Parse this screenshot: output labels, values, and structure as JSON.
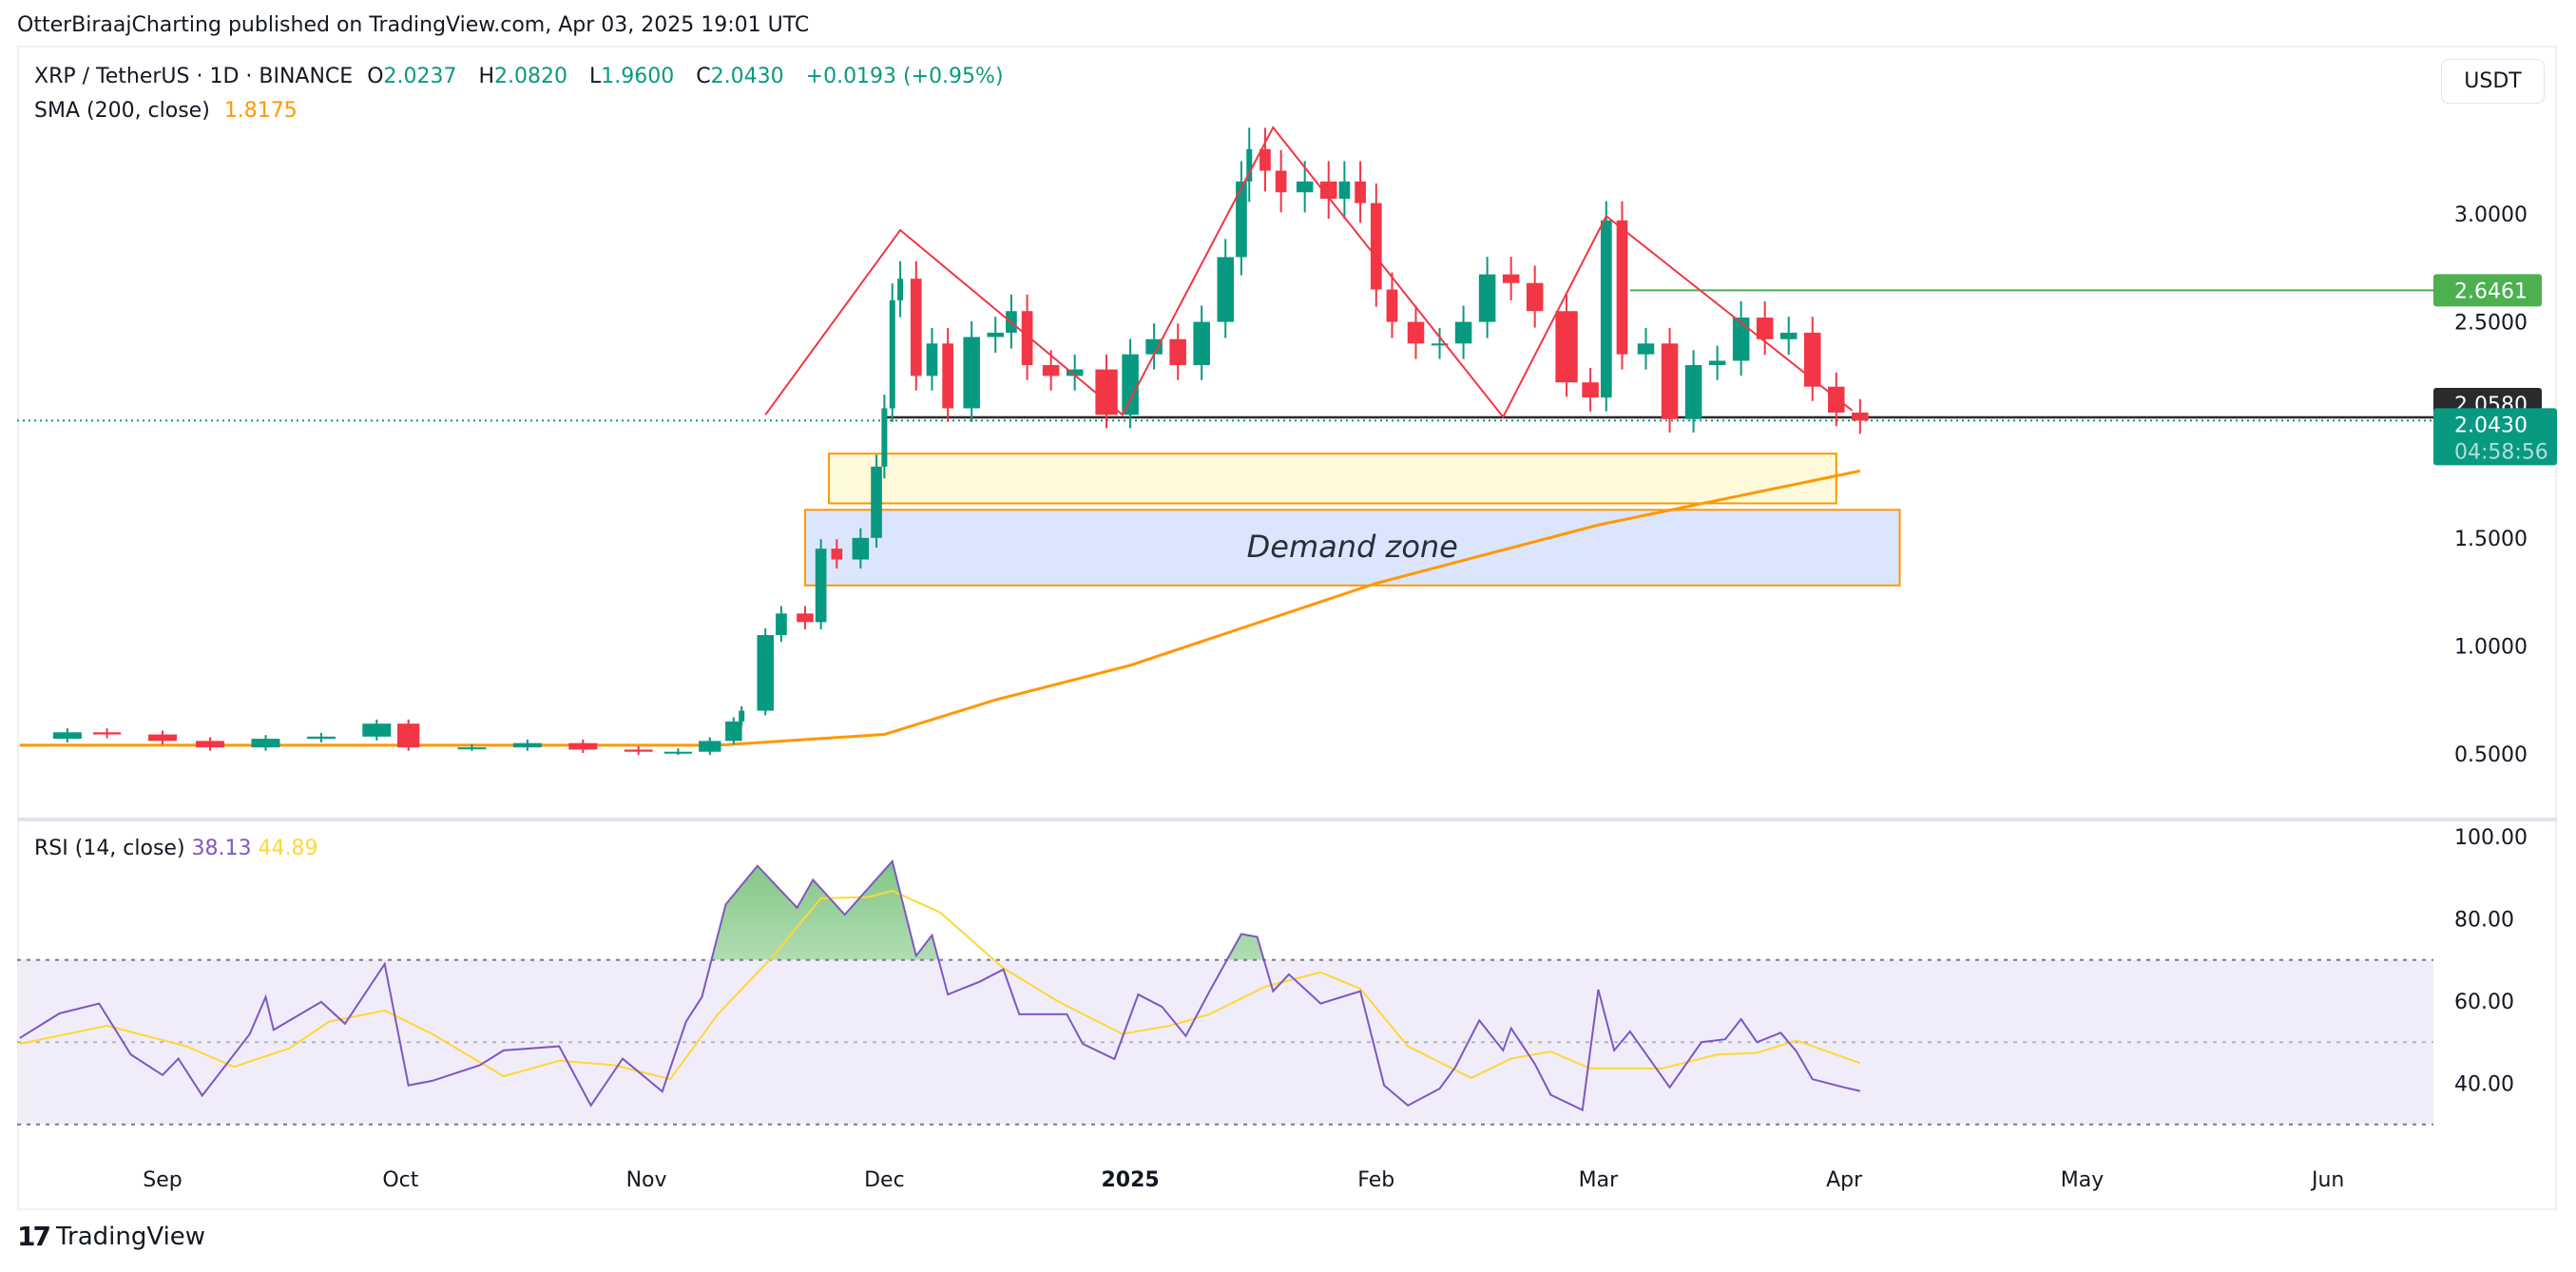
{
  "header": {
    "published": "OtterBiraajCharting published on TradingView.com, Apr 03, 2025 19:01 UTC"
  },
  "legend": {
    "symbol": "XRP / TetherUS · 1D · BINANCE",
    "o_label": "O",
    "o": "2.0237",
    "h_label": "H",
    "h": "2.0820",
    "l_label": "L",
    "l": "1.9600",
    "c_label": "C",
    "c": "2.0430",
    "change": "+0.0193 (+0.95%)",
    "sma_label": "SMA (200, close)",
    "sma_value": "1.8175"
  },
  "currency_button": "USDT",
  "rsi_legend": {
    "label": "RSI (14, close)",
    "rsi": "38.13",
    "ma": "44.89"
  },
  "footer": {
    "brand": "TradingView"
  },
  "colors": {
    "up": "#089981",
    "down": "#f23645",
    "sma": "#ff9800",
    "rsi": "#7e57c2",
    "rsi_ma": "#fdd835",
    "pattern": "#f23645",
    "resistance": "#4caf50"
  },
  "chart_data": [
    {
      "type": "candlestick",
      "pane": "price",
      "yaxis_ticks": [
        "3.0000",
        "2.5000",
        "1.5000",
        "1.0000",
        "0.5000"
      ],
      "ylim": [
        0.2,
        3.6
      ],
      "xaxis_ticks": [
        "Sep",
        "Oct",
        "Nov",
        "Dec",
        "2025",
        "Feb",
        "Mar",
        "Apr",
        "May",
        "Jun"
      ],
      "xaxis_tick_dates": [
        "2024-09-01",
        "2024-10-01",
        "2024-11-01",
        "2024-12-01",
        "2025-01-01",
        "2025-02-01",
        "2025-03-01",
        "2025-04-01",
        "2025-05-01",
        "2025-06-01"
      ],
      "closes": [
        [
          "2024-08-14",
          0.57
        ],
        [
          "2024-08-20",
          0.6
        ],
        [
          "2024-08-25",
          0.59
        ],
        [
          "2024-09-01",
          0.56
        ],
        [
          "2024-09-07",
          0.53
        ],
        [
          "2024-09-14",
          0.57
        ],
        [
          "2024-09-21",
          0.58
        ],
        [
          "2024-09-28",
          0.64
        ],
        [
          "2024-10-02",
          0.53
        ],
        [
          "2024-10-10",
          0.53
        ],
        [
          "2024-10-17",
          0.55
        ],
        [
          "2024-10-24",
          0.52
        ],
        [
          "2024-10-31",
          0.51
        ],
        [
          "2024-11-05",
          0.51
        ],
        [
          "2024-11-09",
          0.56
        ],
        [
          "2024-11-12",
          0.65
        ],
        [
          "2024-11-13",
          0.7
        ],
        [
          "2024-11-16",
          1.05
        ],
        [
          "2024-11-18",
          1.15
        ],
        [
          "2024-11-21",
          1.11
        ],
        [
          "2024-11-23",
          1.45
        ],
        [
          "2024-11-25",
          1.4
        ],
        [
          "2024-11-28",
          1.5
        ],
        [
          "2024-11-30",
          1.83
        ],
        [
          "2024-12-01",
          2.1
        ],
        [
          "2024-12-02",
          2.6
        ],
        [
          "2024-12-03",
          2.7
        ],
        [
          "2024-12-05",
          2.25
        ],
        [
          "2024-12-07",
          2.4
        ],
        [
          "2024-12-09",
          2.1
        ],
        [
          "2024-12-12",
          2.43
        ],
        [
          "2024-12-15",
          2.45
        ],
        [
          "2024-12-17",
          2.55
        ],
        [
          "2024-12-19",
          2.3
        ],
        [
          "2024-12-22",
          2.25
        ],
        [
          "2024-12-25",
          2.28
        ],
        [
          "2024-12-29",
          2.07
        ],
        [
          "2025-01-01",
          2.35
        ],
        [
          "2025-01-04",
          2.42
        ],
        [
          "2025-01-07",
          2.3
        ],
        [
          "2025-01-10",
          2.5
        ],
        [
          "2025-01-13",
          2.8
        ],
        [
          "2025-01-15",
          3.15
        ],
        [
          "2025-01-16",
          3.3
        ],
        [
          "2025-01-18",
          3.2
        ],
        [
          "2025-01-20",
          3.1
        ],
        [
          "2025-01-23",
          3.15
        ],
        [
          "2025-01-26",
          3.07
        ],
        [
          "2025-01-28",
          3.15
        ],
        [
          "2025-01-30",
          3.05
        ],
        [
          "2025-02-01",
          2.65
        ],
        [
          "2025-02-03",
          2.5
        ],
        [
          "2025-02-06",
          2.4
        ],
        [
          "2025-02-09",
          2.4
        ],
        [
          "2025-02-12",
          2.5
        ],
        [
          "2025-02-15",
          2.72
        ],
        [
          "2025-02-18",
          2.68
        ],
        [
          "2025-02-21",
          2.55
        ],
        [
          "2025-02-25",
          2.22
        ],
        [
          "2025-02-28",
          2.15
        ],
        [
          "2025-03-02",
          2.97
        ],
        [
          "2025-03-04",
          2.35
        ],
        [
          "2025-03-07",
          2.4
        ],
        [
          "2025-03-10",
          2.05
        ],
        [
          "2025-03-13",
          2.3
        ],
        [
          "2025-03-16",
          2.32
        ],
        [
          "2025-03-19",
          2.52
        ],
        [
          "2025-03-22",
          2.42
        ],
        [
          "2025-03-25",
          2.45
        ],
        [
          "2025-03-28",
          2.2
        ],
        [
          "2025-03-31",
          2.08
        ],
        [
          "2025-04-03",
          2.043
        ]
      ],
      "sma200": [
        [
          "2024-08-14",
          0.54
        ],
        [
          "2024-11-10",
          0.54
        ],
        [
          "2024-12-01",
          0.59
        ],
        [
          "2024-12-15",
          0.75
        ],
        [
          "2025-01-01",
          0.91
        ],
        [
          "2025-02-01",
          1.29
        ],
        [
          "2025-03-01",
          1.56
        ],
        [
          "2025-04-03",
          1.81
        ]
      ],
      "price_labels": {
        "resistance": {
          "value": 2.6461,
          "text": "2.6461"
        },
        "neckline": {
          "value": 2.058,
          "text": "2.0580"
        },
        "last": {
          "value": 2.043,
          "text": "2.0430",
          "countdown": "04:58:56"
        }
      },
      "pattern_zigzag": [
        [
          "2024-11-16",
          2.07
        ],
        [
          "2024-12-03",
          2.925
        ],
        [
          "2024-12-31",
          2.07
        ],
        [
          "2025-01-19",
          3.4
        ],
        [
          "2025-02-17",
          2.06
        ],
        [
          "2025-03-02",
          2.99
        ],
        [
          "2025-04-02",
          2.09
        ]
      ],
      "resistance_line": {
        "from": "2025-03-05",
        "value": 2.6461
      },
      "neckline": {
        "from": "2024-12-01",
        "value": 2.058
      },
      "zones": [
        {
          "from": "2024-11-24",
          "to": "2025-03-31",
          "top": 1.89,
          "bottom": 1.66,
          "fill": "#fff9db"
        },
        {
          "from": "2024-11-21",
          "to": "2025-04-08",
          "top": 1.63,
          "bottom": 1.28,
          "fill": "#dbe5fd",
          "label": "Demand zone"
        }
      ]
    },
    {
      "type": "line",
      "pane": "rsi",
      "yaxis_ticks": [
        "100.00",
        "80.00",
        "60.00",
        "40.00"
      ],
      "bands": {
        "upper": 70,
        "middle": 50,
        "lower": 30
      },
      "series": [
        {
          "name": "RSI (14, close)",
          "values": [
            [
              "2024-08-14",
              51
            ],
            [
              "2024-08-19",
              57
            ],
            [
              "2024-08-24",
              59.4
            ],
            [
              "2024-08-28",
              47
            ],
            [
              "2024-09-01",
              42
            ],
            [
              "2024-09-03",
              46
            ],
            [
              "2024-09-06",
              37
            ],
            [
              "2024-09-12",
              52
            ],
            [
              "2024-09-14",
              61
            ],
            [
              "2024-09-15",
              53
            ],
            [
              "2024-09-21",
              59.8
            ],
            [
              "2024-09-24",
              54.5
            ],
            [
              "2024-09-29",
              69
            ],
            [
              "2024-10-02",
              39.5
            ],
            [
              "2024-10-05",
              40.6
            ],
            [
              "2024-10-11",
              44.4
            ],
            [
              "2024-10-14",
              48
            ],
            [
              "2024-10-21",
              49
            ],
            [
              "2024-10-25",
              34.6
            ],
            [
              "2024-10-29",
              46
            ],
            [
              "2024-11-03",
              38
            ],
            [
              "2024-11-06",
              55
            ],
            [
              "2024-11-08",
              61
            ],
            [
              "2024-11-11",
              83.5
            ],
            [
              "2024-11-15",
              92.9
            ],
            [
              "2024-11-20",
              82.7
            ],
            [
              "2024-11-22",
              89.5
            ],
            [
              "2024-11-26",
              81
            ],
            [
              "2024-12-02",
              94
            ],
            [
              "2024-12-05",
              71
            ],
            [
              "2024-12-07",
              76
            ],
            [
              "2024-12-09",
              61.6
            ],
            [
              "2024-12-13",
              64.7
            ],
            [
              "2024-12-16",
              67.7
            ],
            [
              "2024-12-18",
              56.8
            ],
            [
              "2024-12-24",
              56.8
            ],
            [
              "2024-12-26",
              49.6
            ],
            [
              "2024-12-30",
              45.9
            ],
            [
              "2025-01-02",
              61.6
            ],
            [
              "2025-01-05",
              58.6
            ],
            [
              "2025-01-08",
              51.5
            ],
            [
              "2025-01-11",
              62.4
            ],
            [
              "2025-01-15",
              76.3
            ],
            [
              "2025-01-17",
              75.6
            ],
            [
              "2025-01-19",
              62.4
            ],
            [
              "2025-01-21",
              66.5
            ],
            [
              "2025-01-25",
              59.4
            ],
            [
              "2025-01-30",
              62.4
            ],
            [
              "2025-02-02",
              39.5
            ],
            [
              "2025-02-05",
              34.6
            ],
            [
              "2025-02-09",
              38.7
            ],
            [
              "2025-02-11",
              44
            ],
            [
              "2025-02-14",
              55.3
            ],
            [
              "2025-02-17",
              48
            ],
            [
              "2025-02-18",
              53.4
            ],
            [
              "2025-02-21",
              44.7
            ],
            [
              "2025-02-23",
              37.2
            ],
            [
              "2025-02-27",
              33.5
            ],
            [
              "2025-03-01",
              62.8
            ],
            [
              "2025-03-03",
              48
            ],
            [
              "2025-03-05",
              52.6
            ],
            [
              "2025-03-10",
              39
            ],
            [
              "2025-03-14",
              50
            ],
            [
              "2025-03-17",
              50.7
            ],
            [
              "2025-03-19",
              55.6
            ],
            [
              "2025-03-21",
              50
            ],
            [
              "2025-03-24",
              52.3
            ],
            [
              "2025-03-26",
              47.7
            ],
            [
              "2025-03-28",
              41
            ],
            [
              "2025-04-01",
              39
            ],
            [
              "2025-04-03",
              38.13
            ]
          ]
        },
        {
          "name": "RSI MA",
          "values": [
            [
              "2024-08-14",
              49.6
            ],
            [
              "2024-08-25",
              54
            ],
            [
              "2024-09-04",
              49
            ],
            [
              "2024-09-10",
              44
            ],
            [
              "2024-09-17",
              48.5
            ],
            [
              "2024-09-22",
              55
            ],
            [
              "2024-09-29",
              57.7
            ],
            [
              "2024-10-05",
              52
            ],
            [
              "2024-10-14",
              41.7
            ],
            [
              "2024-10-21",
              45.5
            ],
            [
              "2024-10-28",
              44.4
            ],
            [
              "2024-11-04",
              41
            ],
            [
              "2024-11-10",
              56.8
            ],
            [
              "2024-11-17",
              71
            ],
            [
              "2024-11-23",
              85
            ],
            [
              "2024-11-29",
              85.3
            ],
            [
              "2024-12-02",
              86.8
            ],
            [
              "2024-12-08",
              81.6
            ],
            [
              "2024-12-16",
              68
            ],
            [
              "2024-12-23",
              59.8
            ],
            [
              "2024-12-31",
              52
            ],
            [
              "2025-01-06",
              54
            ],
            [
              "2025-01-11",
              56.8
            ],
            [
              "2025-01-18",
              63.5
            ],
            [
              "2025-01-25",
              67
            ],
            [
              "2025-01-30",
              63
            ],
            [
              "2025-02-05",
              49
            ],
            [
              "2025-02-13",
              41.3
            ],
            [
              "2025-02-18",
              46
            ],
            [
              "2025-02-23",
              47.7
            ],
            [
              "2025-02-28",
              43.6
            ],
            [
              "2025-03-09",
              43.6
            ],
            [
              "2025-03-16",
              47
            ],
            [
              "2025-03-21",
              47.4
            ],
            [
              "2025-03-26",
              50.4
            ],
            [
              "2025-04-03",
              44.89
            ]
          ]
        }
      ]
    }
  ]
}
